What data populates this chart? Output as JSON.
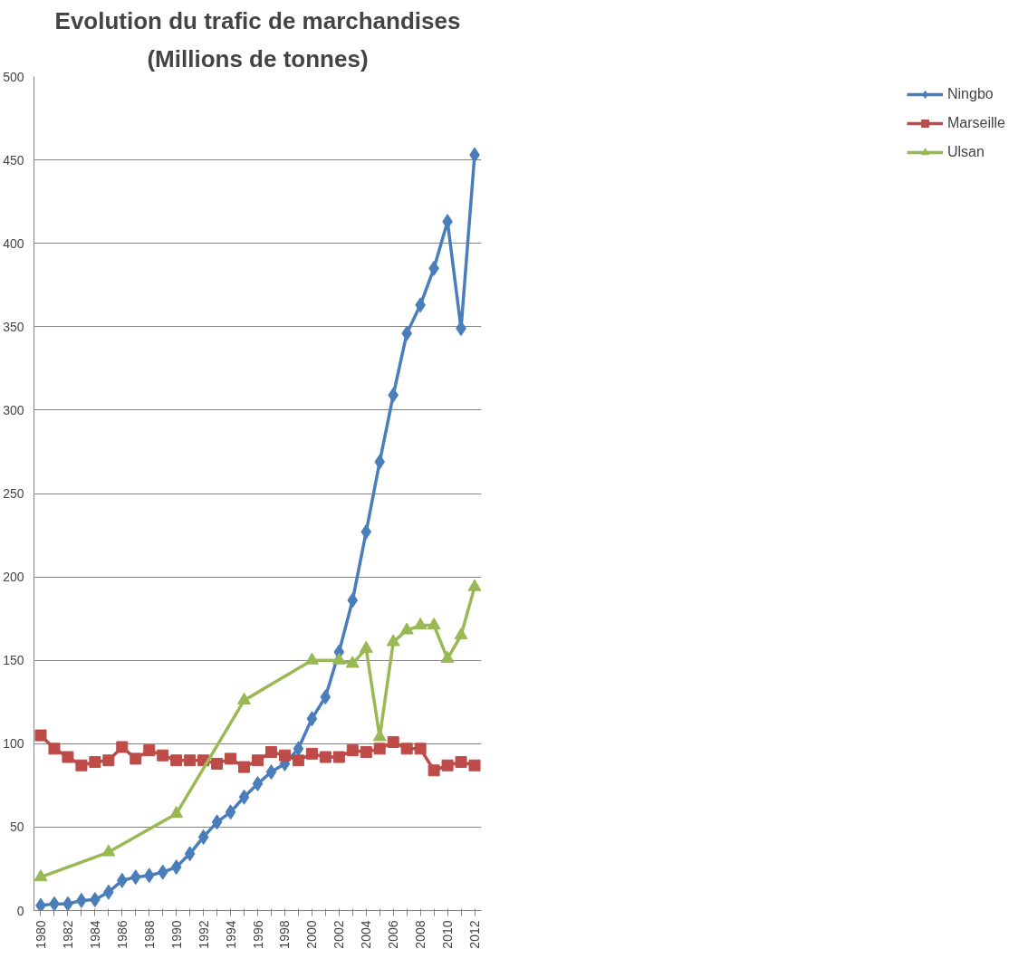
{
  "chart_data": {
    "type": "line",
    "title": "Evolution du trafic de marchandises",
    "subtitle": "(Millions de tonnes)",
    "x": [
      1980,
      1981,
      1982,
      1983,
      1984,
      1985,
      1986,
      1987,
      1988,
      1989,
      1990,
      1991,
      1992,
      1993,
      1994,
      1995,
      1996,
      1997,
      1998,
      1999,
      2000,
      2001,
      2002,
      2003,
      2004,
      2005,
      2006,
      2007,
      2008,
      2009,
      2010,
      2011,
      2012
    ],
    "series": [
      {
        "name": "Ningbo",
        "color": "#4a7ebb",
        "marker": "diamond",
        "values": [
          3,
          4,
          4,
          6,
          6.5,
          11,
          18,
          20,
          21,
          23,
          26,
          34,
          44,
          53,
          59,
          68,
          76,
          83,
          88,
          97,
          115,
          128,
          155,
          186,
          227,
          269,
          309,
          346,
          363,
          385,
          413,
          349,
          453
        ]
      },
      {
        "name": "Marseille",
        "color": "#be4b48",
        "marker": "square",
        "values": [
          105,
          97,
          92,
          87,
          89,
          90,
          98,
          91,
          96,
          93,
          90,
          90,
          90,
          88,
          91,
          86,
          90,
          95,
          93,
          90,
          94,
          92,
          92,
          96,
          95,
          97,
          101,
          97,
          97,
          84,
          87,
          89,
          87
        ]
      },
      {
        "name": "Ulsan",
        "color": "#98b954",
        "marker": "triangle",
        "x": [
          1980,
          1985,
          1990,
          1995,
          2000,
          2002,
          2003,
          2004,
          2005,
          2006,
          2007,
          2008,
          2009,
          2010,
          2011,
          2012
        ],
        "values": [
          20,
          35,
          58,
          126,
          150,
          150,
          148,
          157,
          104,
          161,
          168,
          171,
          171,
          151,
          165,
          194
        ]
      }
    ],
    "xlim": [
      1979.5,
      2012.5
    ],
    "xticks": [
      1980,
      {
        "value": 1981,
        "label": null
      },
      1982,
      {
        "value": 1983,
        "label": null
      },
      1984,
      {
        "value": 1985,
        "label": null
      },
      1986,
      {
        "value": 1987,
        "label": null
      },
      1988,
      {
        "value": 1989,
        "label": null
      },
      1990,
      {
        "value": 1991,
        "label": null
      },
      1992,
      {
        "value": 1993,
        "label": null
      },
      1994,
      {
        "value": 1995,
        "label": null
      },
      1996,
      {
        "value": 1997,
        "label": null
      },
      1998,
      {
        "value": 1999,
        "label": null
      },
      2000,
      {
        "value": 2001,
        "label": null
      },
      2002,
      {
        "value": 2003,
        "label": null
      },
      2004,
      {
        "value": 2005,
        "label": null
      },
      2006,
      {
        "value": 2007,
        "label": null
      },
      2008,
      {
        "value": 2009,
        "label": null
      },
      2010,
      {
        "value": 2011,
        "label": null
      },
      2012
    ],
    "ylim": [
      0,
      500
    ],
    "yticks": [
      0,
      50,
      100,
      150,
      200,
      250,
      300,
      350,
      400,
      450,
      500
    ],
    "grid": "y",
    "legend": "right",
    "line_style": "solid"
  }
}
